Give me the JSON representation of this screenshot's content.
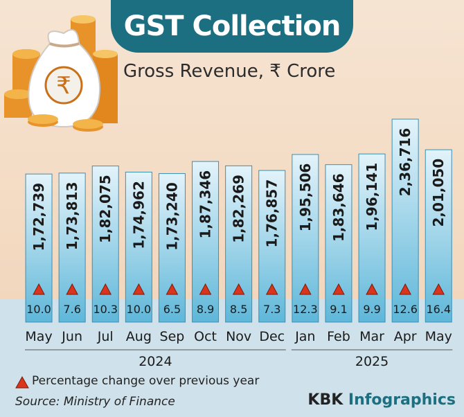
{
  "header": {
    "title": "GST Collection",
    "subtitle": "Gross Revenue, ₹ Crore"
  },
  "legend": {
    "label": "Percentage change over previous year"
  },
  "footer": {
    "source": "Source: Ministry of Finance",
    "brand_part1": "KBK ",
    "brand_part2": "Infographics"
  },
  "chart_data": {
    "type": "bar",
    "title": "GST Collection",
    "subtitle": "Gross Revenue, ₹ Crore",
    "categories": [
      "May",
      "Jun",
      "Jul",
      "Aug",
      "Sep",
      "Oct",
      "Nov",
      "Dec",
      "Jan",
      "Feb",
      "Mar",
      "Apr",
      "May"
    ],
    "years": [
      {
        "label": "2024",
        "first_index": 0,
        "last_index": 7
      },
      {
        "label": "2025",
        "first_index": 8,
        "last_index": 12
      }
    ],
    "series": [
      {
        "values": [
          172739,
          173813,
          182075,
          174962,
          173240,
          187346,
          182269,
          176857,
          195506,
          183646,
          196141,
          236716,
          201050
        ],
        "labels": [
          "1,72,739",
          "1,73,813",
          "1,82,075",
          "1,74,962",
          "1,73,240",
          "1,87,346",
          "1,82,269",
          "1,76,857",
          "1,95,506",
          "1,83,646",
          "1,96,141",
          "2,36,716",
          "2,01,050"
        ]
      },
      {
        "name": "Percentage change over previous year",
        "values": [
          10.0,
          7.6,
          10.3,
          10.0,
          6.5,
          8.9,
          8.5,
          7.3,
          12.3,
          9.1,
          9.9,
          12.6,
          16.4
        ],
        "labels": [
          "10.0",
          "7.6",
          "10.3",
          "10.0",
          "6.5",
          "8.9",
          "8.5",
          "7.3",
          "12.3",
          "9.1",
          "9.9",
          "12.6",
          "16.4"
        ]
      }
    ],
    "xlabel": "",
    "ylabel": "",
    "grid": false,
    "legend_position": "bottom-left",
    "colors": {
      "bar_top": "#e3f3fa",
      "bar_bottom": "#5fb7d9",
      "bar_stroke": "#3a8fb5",
      "triangle": "#d9341c",
      "title_bg": "#1b6f80"
    }
  },
  "icons": {
    "illustration": "money-bag-coins-icon",
    "marker": "red-triangle-icon"
  }
}
